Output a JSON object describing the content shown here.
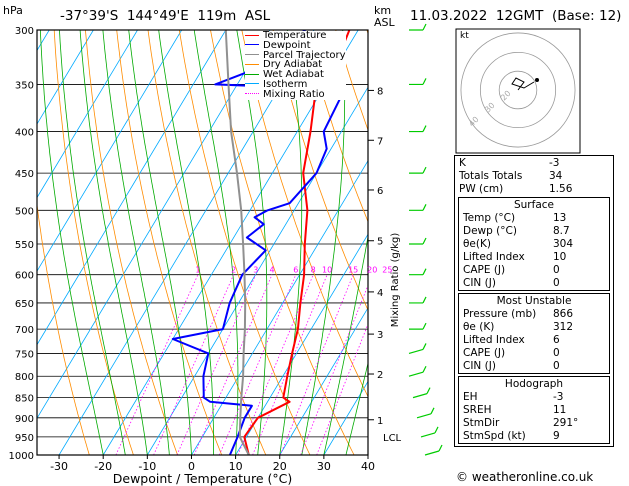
{
  "header": {
    "hpa_label": "hPa",
    "location": "-37°39'S  144°49'E  119m  ASL",
    "km_label": "km",
    "asl_label": "ASL",
    "datetime": "11.03.2022  12GMT  (Base: 12)"
  },
  "footer": {
    "credit": "© weatheronline.co.uk"
  },
  "chart_data": {
    "type": "line",
    "title": "-37°39'S 144°49'E 119m ASL",
    "xlabel": "Dewpoint / Temperature (°C)",
    "ylabel": "hPa",
    "secondary_ylabel": "Mixing Ratio (g/kg)",
    "xlim": [
      -35,
      40
    ],
    "ylim": [
      1000,
      300
    ],
    "log_scale_y": true,
    "x_ticks": [
      "-30",
      "-20",
      "-10",
      "0",
      "10",
      "20",
      "30",
      "40"
    ],
    "pressure_ticks": [
      "300",
      "350",
      "400",
      "450",
      "500",
      "550",
      "600",
      "650",
      "700",
      "750",
      "800",
      "850",
      "900",
      "950",
      "1000"
    ],
    "height_ticks_km": [
      "8",
      "7",
      "6",
      "5",
      "4",
      "3",
      "2",
      "1"
    ],
    "lcl_label": "LCL",
    "mixing_ratio_labels": [
      "1",
      "2",
      "3",
      "4",
      "6",
      "8",
      "10",
      "15",
      "20",
      "25"
    ],
    "legend_placement": "top-left of plot",
    "legend": [
      {
        "name": "Temperature",
        "color": "#ff0000"
      },
      {
        "name": "Dewpoint",
        "color": "#0000ff"
      },
      {
        "name": "Parcel Trajectory",
        "color": "#909090"
      },
      {
        "name": "Dry Adiabat",
        "color": "#ff8c00"
      },
      {
        "name": "Wet Adiabat",
        "color": "#00aa00"
      },
      {
        "name": "Isotherm",
        "color": "#00aaff"
      },
      {
        "name": "Mixing Ratio",
        "color": "#ff00ff"
      }
    ],
    "series": [
      {
        "name": "Temperature",
        "color": "#ff0000",
        "points": [
          [
            1000,
            13
          ],
          [
            950,
            9.5
          ],
          [
            900,
            10
          ],
          [
            860,
            15
          ],
          [
            850,
            13
          ],
          [
            800,
            11
          ],
          [
            750,
            9
          ],
          [
            700,
            7
          ],
          [
            650,
            4
          ],
          [
            600,
            1
          ],
          [
            550,
            -3
          ],
          [
            500,
            -7
          ],
          [
            450,
            -13
          ],
          [
            400,
            -17
          ],
          [
            360,
            -21
          ],
          [
            350,
            -21
          ],
          [
            340,
            -20
          ],
          [
            300,
            -22
          ]
        ]
      },
      {
        "name": "Dewpoint",
        "color": "#0000ff",
        "points": [
          [
            1000,
            8.7
          ],
          [
            950,
            8
          ],
          [
            900,
            7
          ],
          [
            870,
            7
          ],
          [
            860,
            -3
          ],
          [
            850,
            -5
          ],
          [
            800,
            -8
          ],
          [
            750,
            -10
          ],
          [
            720,
            -20
          ],
          [
            700,
            -10
          ],
          [
            650,
            -12
          ],
          [
            600,
            -13
          ],
          [
            560,
            -11
          ],
          [
            540,
            -17
          ],
          [
            520,
            -15
          ],
          [
            510,
            -18
          ],
          [
            500,
            -16
          ],
          [
            490,
            -12
          ],
          [
            450,
            -10
          ],
          [
            420,
            -11
          ],
          [
            400,
            -14
          ],
          [
            355,
            -15
          ],
          [
            350,
            -45
          ],
          [
            335,
            -38
          ],
          [
            300,
            -32
          ]
        ]
      },
      {
        "name": "Parcel Trajectory",
        "color": "#909090",
        "points": [
          [
            1000,
            13
          ],
          [
            950,
            8.5
          ],
          [
            900,
            6
          ],
          [
            850,
            3.5
          ],
          [
            800,
            1
          ],
          [
            750,
            -2
          ],
          [
            700,
            -5
          ],
          [
            650,
            -8.5
          ],
          [
            600,
            -12.5
          ],
          [
            550,
            -17
          ],
          [
            500,
            -22
          ],
          [
            450,
            -28
          ],
          [
            400,
            -35
          ],
          [
            350,
            -42
          ],
          [
            300,
            -50
          ]
        ]
      }
    ],
    "wind_barb_color": "#00cc00"
  },
  "hodograph": {
    "units_label": "kt",
    "ring_labels": [
      "40",
      "30",
      "20"
    ]
  },
  "indices": [
    {
      "k": "K",
      "v": "-3"
    },
    {
      "k": "Totals Totals",
      "v": "34"
    },
    {
      "k": "PW (cm)",
      "v": "1.56"
    }
  ],
  "surface": {
    "title": "Surface",
    "rows": [
      {
        "k": "Temp (°C)",
        "v": "13"
      },
      {
        "k": "Dewp (°C)",
        "v": "8.7"
      },
      {
        "k": "θe(K)",
        "v": "304"
      },
      {
        "k": "Lifted Index",
        "v": "10"
      },
      {
        "k": "CAPE (J)",
        "v": "0"
      },
      {
        "k": "CIN (J)",
        "v": "0"
      }
    ]
  },
  "most_unstable": {
    "title": "Most Unstable",
    "rows": [
      {
        "k": "Pressure (mb)",
        "v": "866"
      },
      {
        "k": "θe (K)",
        "v": "312"
      },
      {
        "k": "Lifted Index",
        "v": "6"
      },
      {
        "k": "CAPE (J)",
        "v": "0"
      },
      {
        "k": "CIN (J)",
        "v": "0"
      }
    ]
  },
  "hodograph_table": {
    "title": "Hodograph",
    "rows": [
      {
        "k": "EH",
        "v": "-3"
      },
      {
        "k": "SREH",
        "v": "11"
      },
      {
        "k": "StmDir",
        "v": "291°"
      },
      {
        "k": "StmSpd (kt)",
        "v": "9"
      }
    ]
  }
}
